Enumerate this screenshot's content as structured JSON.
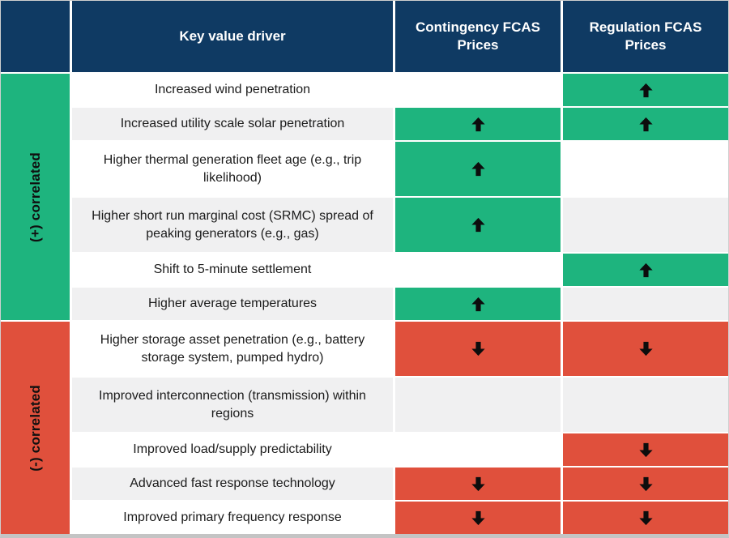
{
  "colors": {
    "header_navy": "#0f3a63",
    "positive_green": "#1eb47e",
    "negative_red": "#e0503c",
    "row_white": "#ffffff",
    "row_alt_gray": "#f0f0f1",
    "arrow_black": "#0d0d0d",
    "frame_gray": "#c4c4c4"
  },
  "header": {
    "driver": "Key value driver",
    "contingency": "Contingency FCAS Prices",
    "regulation": "Regulation FCAS Prices"
  },
  "groups": [
    {
      "label": "(+) correlated",
      "rows": 6,
      "color": "#1eb47e"
    },
    {
      "label": "(-) correlated",
      "rows": 5,
      "color": "#e0503c"
    }
  ],
  "chart_data": {
    "type": "table",
    "columns": [
      "Key value driver",
      "Contingency FCAS Prices",
      "Regulation FCAS Prices"
    ],
    "arrow_legend": {
      "up": "increase",
      "down": "decrease",
      "": "no marked effect"
    },
    "rows": [
      {
        "driver": "Increased wind penetration",
        "group": "(+) correlated",
        "contingency": "",
        "regulation": "up",
        "tall": false
      },
      {
        "driver": "Increased utility scale solar penetration",
        "group": "(+) correlated",
        "contingency": "up",
        "regulation": "up",
        "tall": false
      },
      {
        "driver": "Higher thermal generation fleet age (e.g., trip likelihood)",
        "group": "(+) correlated",
        "contingency": "up",
        "regulation": "",
        "tall": true
      },
      {
        "driver": "Higher short run marginal cost (SRMC) spread of peaking generators (e.g., gas)",
        "group": "(+) correlated",
        "contingency": "up",
        "regulation": "",
        "tall": true
      },
      {
        "driver": "Shift to 5-minute settlement",
        "group": "(+) correlated",
        "contingency": "",
        "regulation": "up",
        "tall": false
      },
      {
        "driver": "Higher average temperatures",
        "group": "(+) correlated",
        "contingency": "up",
        "regulation": "",
        "tall": false
      },
      {
        "driver": "Higher storage asset penetration (e.g., battery storage system, pumped hydro)",
        "group": "(-) correlated",
        "contingency": "down",
        "regulation": "down",
        "tall": true
      },
      {
        "driver": "Improved interconnection (transmission) within regions",
        "group": "(-) correlated",
        "contingency": "",
        "regulation": "",
        "tall": true
      },
      {
        "driver": "Improved load/supply predictability",
        "group": "(-) correlated",
        "contingency": "",
        "regulation": "down",
        "tall": false
      },
      {
        "driver": "Advanced fast response technology",
        "group": "(-) correlated",
        "contingency": "down",
        "regulation": "down",
        "tall": false
      },
      {
        "driver": "Improved primary frequency response",
        "group": "(-) correlated",
        "contingency": "down",
        "regulation": "down",
        "tall": false
      }
    ]
  }
}
